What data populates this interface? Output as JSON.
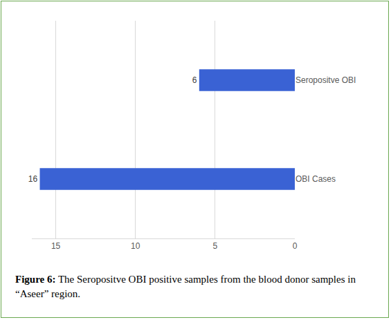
{
  "chart_data": {
    "type": "bar",
    "orientation": "horizontal",
    "title": "Figure 6: The Seropositve OBI positive samples from the blood donor samples in “Aseer” region.",
    "categories": [
      "OBI Cases",
      "Seropositve OBI"
    ],
    "values": [
      16,
      6
    ],
    "color": "#3a62d4",
    "xlim": [
      16.5,
      0
    ],
    "xticks": [
      0,
      5,
      10,
      15
    ],
    "grid": true,
    "data_labels": true
  }
}
